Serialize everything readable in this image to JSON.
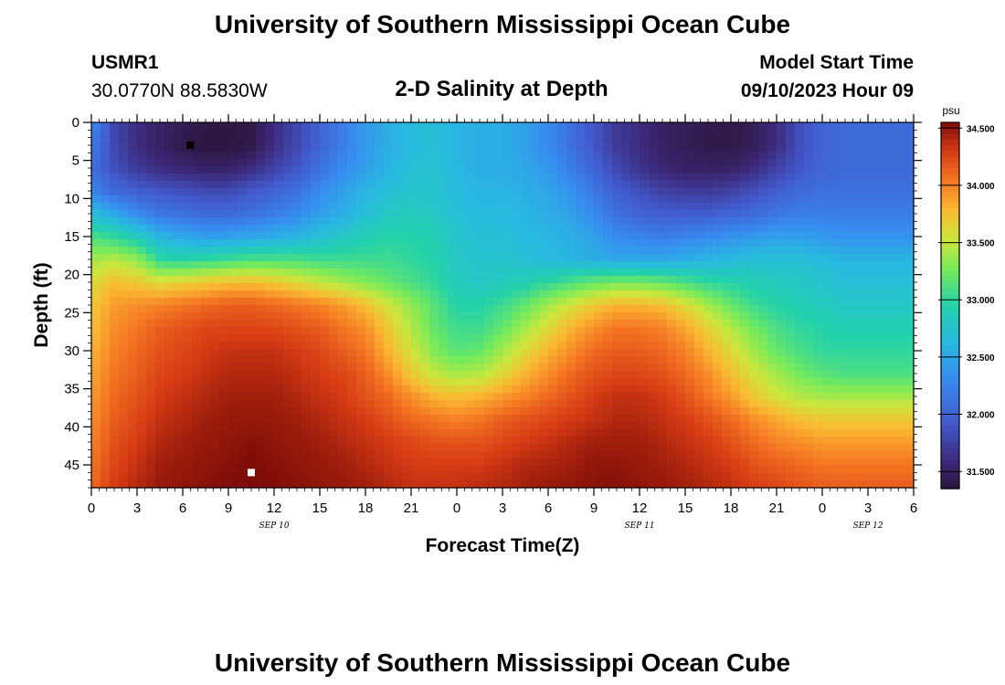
{
  "header": {
    "title": "University of Southern Mississippi Ocean Cube",
    "station": "USMR1",
    "coords": "30.0770N  88.5830W",
    "subtitle": "2-D Salinity at Depth",
    "model_label": "Model Start Time",
    "model_time": "09/10/2023 Hour 09"
  },
  "footer": {
    "title": "University of Southern Mississippi Ocean Cube"
  },
  "colorbar": {
    "unit": "psu",
    "tick_labels": [
      "34.500",
      "34.000",
      "33.500",
      "33.000",
      "32.500",
      "32.000",
      "31.500"
    ],
    "tick_values": [
      34.5,
      34.0,
      33.5,
      33.0,
      32.5,
      32.0,
      31.5
    ],
    "min": 31.35,
    "max": 34.55
  },
  "chart_data": {
    "type": "heatmap",
    "xlabel": "Forecast Time(Z)",
    "ylabel": "Depth (ft)",
    "x_unit": "hours from 00Z SEP 10",
    "xlim": [
      0,
      54
    ],
    "ylim": [
      0,
      48
    ],
    "y_inverted": true,
    "x_ticks": [
      0,
      3,
      6,
      9,
      12,
      15,
      18,
      21,
      24,
      27,
      30,
      33,
      36,
      39,
      42,
      45,
      48,
      51,
      54
    ],
    "x_tick_labels": [
      "0",
      "3",
      "6",
      "9",
      "12",
      "15",
      "18",
      "21",
      "0",
      "3",
      "6",
      "9",
      "12",
      "15",
      "18",
      "21",
      "0",
      "3",
      "6"
    ],
    "y_ticks": [
      0,
      5,
      10,
      15,
      20,
      25,
      30,
      35,
      40,
      45
    ],
    "y_tick_labels": [
      "0",
      "5",
      "10",
      "15",
      "20",
      "25",
      "30",
      "35",
      "40",
      "45"
    ],
    "day_labels": [
      {
        "text": "SEP 10",
        "hour": 12
      },
      {
        "text": "SEP 11",
        "hour": 36
      },
      {
        "text": "SEP 12",
        "hour": 51
      }
    ],
    "markers": [
      {
        "kind": "min",
        "color": "#000000",
        "hour": 6.5,
        "depth": 3
      },
      {
        "kind": "max",
        "color": "#ffffff",
        "hour": 10.5,
        "depth": 46
      }
    ],
    "grid_hours": [
      0,
      1.5,
      3,
      4.5,
      6,
      7.5,
      9,
      10.5,
      12,
      13.5,
      15,
      16.5,
      18,
      19.5,
      21,
      22.5,
      24,
      25.5,
      27,
      28.5,
      30,
      31.5,
      33,
      34.5,
      36,
      37.5,
      39,
      40.5,
      42,
      43.5,
      45,
      46.5,
      48,
      49.5,
      51,
      52.5,
      54
    ],
    "grid_depths": [
      0,
      3,
      6,
      9,
      12,
      15,
      18,
      21,
      24,
      27,
      30,
      33,
      36,
      39,
      42,
      45,
      48
    ],
    "salinity": [
      [
        32.3,
        31.8,
        31.6,
        31.5,
        31.45,
        31.4,
        31.38,
        31.4,
        31.6,
        31.8,
        32.0,
        32.2,
        32.4,
        32.55,
        32.65,
        32.7,
        32.6,
        32.55,
        32.55,
        32.45,
        32.3,
        32.1,
        31.9,
        31.7,
        31.6,
        31.5,
        31.45,
        31.42,
        31.4,
        31.45,
        31.6,
        31.85,
        32.0,
        32.05,
        32.05,
        32.05,
        32.05
      ],
      [
        32.2,
        31.8,
        31.6,
        31.5,
        31.4,
        31.36,
        31.36,
        31.4,
        31.62,
        31.8,
        32.0,
        32.2,
        32.4,
        32.55,
        32.65,
        32.7,
        32.6,
        32.55,
        32.55,
        32.45,
        32.3,
        32.1,
        31.9,
        31.7,
        31.6,
        31.5,
        31.45,
        31.4,
        31.4,
        31.45,
        31.6,
        31.85,
        32.0,
        32.05,
        32.05,
        32.05,
        32.05
      ],
      [
        32.1,
        31.85,
        31.7,
        31.6,
        31.55,
        31.5,
        31.5,
        31.6,
        31.75,
        31.9,
        32.1,
        32.3,
        32.45,
        32.6,
        32.7,
        32.72,
        32.62,
        32.55,
        32.55,
        32.5,
        32.4,
        32.2,
        32.0,
        31.8,
        31.65,
        31.55,
        31.5,
        31.5,
        31.5,
        31.6,
        31.75,
        31.9,
        32.0,
        32.05,
        32.05,
        32.05,
        32.05
      ],
      [
        32.25,
        32.05,
        31.95,
        31.9,
        31.85,
        31.8,
        31.8,
        31.9,
        32.0,
        32.1,
        32.3,
        32.45,
        32.6,
        32.7,
        32.75,
        32.75,
        32.65,
        32.6,
        32.6,
        32.55,
        32.5,
        32.35,
        32.15,
        31.95,
        31.85,
        31.75,
        31.7,
        31.7,
        31.75,
        31.85,
        31.95,
        32.05,
        32.1,
        32.1,
        32.1,
        32.1,
        32.1
      ],
      [
        32.7,
        32.5,
        32.3,
        32.15,
        32.1,
        32.05,
        32.05,
        32.1,
        32.2,
        32.3,
        32.45,
        32.55,
        32.7,
        32.8,
        32.85,
        32.8,
        32.7,
        32.65,
        32.65,
        32.6,
        32.55,
        32.45,
        32.3,
        32.1,
        32.0,
        31.95,
        31.95,
        31.95,
        32.0,
        32.05,
        32.15,
        32.2,
        32.2,
        32.2,
        32.2,
        32.2,
        32.2
      ],
      [
        33.1,
        33.0,
        32.85,
        32.6,
        32.5,
        32.45,
        32.45,
        32.5,
        32.55,
        32.6,
        32.7,
        32.8,
        32.9,
        32.95,
        32.95,
        32.9,
        32.75,
        32.7,
        32.7,
        32.65,
        32.6,
        32.55,
        32.45,
        32.3,
        32.25,
        32.2,
        32.25,
        32.3,
        32.35,
        32.4,
        32.45,
        32.45,
        32.4,
        32.35,
        32.35,
        32.35,
        32.35
      ],
      [
        33.4,
        33.45,
        33.35,
        33.0,
        32.95,
        33.0,
        33.05,
        33.1,
        33.1,
        33.1,
        33.05,
        33.05,
        33.05,
        33.05,
        33.0,
        32.95,
        32.8,
        32.75,
        32.75,
        32.7,
        32.65,
        32.6,
        32.55,
        32.5,
        32.5,
        32.5,
        32.55,
        32.6,
        32.65,
        32.7,
        32.7,
        32.7,
        32.65,
        32.6,
        32.6,
        32.6,
        32.6
      ],
      [
        33.6,
        33.75,
        33.7,
        33.6,
        33.65,
        33.7,
        33.75,
        33.75,
        33.7,
        33.6,
        33.5,
        33.4,
        33.3,
        33.2,
        33.1,
        33.0,
        32.85,
        32.8,
        32.85,
        32.9,
        33.0,
        33.1,
        33.2,
        33.25,
        33.25,
        33.2,
        33.1,
        33.0,
        32.95,
        32.9,
        32.85,
        32.8,
        32.75,
        32.7,
        32.7,
        32.7,
        32.7
      ],
      [
        33.7,
        33.9,
        33.95,
        34.0,
        34.05,
        34.1,
        34.15,
        34.15,
        34.1,
        34.05,
        34.0,
        33.9,
        33.75,
        33.55,
        33.35,
        33.15,
        32.95,
        32.95,
        33.05,
        33.2,
        33.4,
        33.55,
        33.7,
        33.8,
        33.8,
        33.75,
        33.6,
        33.4,
        33.2,
        33.05,
        32.95,
        32.9,
        32.85,
        32.8,
        32.8,
        32.8,
        32.8
      ],
      [
        33.75,
        33.95,
        34.05,
        34.15,
        34.2,
        34.25,
        34.25,
        34.25,
        34.25,
        34.2,
        34.15,
        34.05,
        33.95,
        33.7,
        33.45,
        33.2,
        33.05,
        33.05,
        33.2,
        33.4,
        33.6,
        33.8,
        33.95,
        34.05,
        34.05,
        34.0,
        33.85,
        33.65,
        33.45,
        33.25,
        33.1,
        33.0,
        32.95,
        32.9,
        32.9,
        32.9,
        32.9
      ],
      [
        33.8,
        34.0,
        34.1,
        34.2,
        34.25,
        34.3,
        34.35,
        34.35,
        34.35,
        34.3,
        34.25,
        34.15,
        34.05,
        33.8,
        33.55,
        33.3,
        33.15,
        33.2,
        33.4,
        33.6,
        33.8,
        33.95,
        34.1,
        34.15,
        34.15,
        34.1,
        34.0,
        33.8,
        33.6,
        33.4,
        33.2,
        33.1,
        33.0,
        33.0,
        33.0,
        33.0,
        33.0
      ],
      [
        33.85,
        34.05,
        34.15,
        34.25,
        34.3,
        34.35,
        34.4,
        34.4,
        34.4,
        34.35,
        34.3,
        34.25,
        34.15,
        33.95,
        33.7,
        33.5,
        33.4,
        33.45,
        33.6,
        33.8,
        33.95,
        34.1,
        34.2,
        34.25,
        34.25,
        34.2,
        34.1,
        33.95,
        33.75,
        33.55,
        33.4,
        33.25,
        33.15,
        33.1,
        33.1,
        33.1,
        33.1
      ],
      [
        33.9,
        34.1,
        34.2,
        34.3,
        34.35,
        34.4,
        34.45,
        34.45,
        34.45,
        34.4,
        34.35,
        34.3,
        34.2,
        34.1,
        33.95,
        33.8,
        33.75,
        33.8,
        33.9,
        34.0,
        34.1,
        34.2,
        34.3,
        34.35,
        34.35,
        34.3,
        34.2,
        34.05,
        33.9,
        33.7,
        33.55,
        33.45,
        33.4,
        33.4,
        33.4,
        33.4,
        33.4
      ],
      [
        33.95,
        34.15,
        34.25,
        34.35,
        34.4,
        34.45,
        34.48,
        34.48,
        34.48,
        34.45,
        34.4,
        34.35,
        34.3,
        34.2,
        34.1,
        34.05,
        34.0,
        34.05,
        34.15,
        34.2,
        34.25,
        34.3,
        34.35,
        34.4,
        34.4,
        34.35,
        34.3,
        34.2,
        34.1,
        33.95,
        33.85,
        33.75,
        33.7,
        33.7,
        33.7,
        33.7,
        33.7
      ],
      [
        34.0,
        34.2,
        34.3,
        34.4,
        34.45,
        34.48,
        34.5,
        34.52,
        34.5,
        34.48,
        34.45,
        34.4,
        34.35,
        34.3,
        34.25,
        34.2,
        34.2,
        34.2,
        34.25,
        34.3,
        34.35,
        34.4,
        34.45,
        34.45,
        34.45,
        34.4,
        34.35,
        34.3,
        34.2,
        34.1,
        34.0,
        33.95,
        33.9,
        33.9,
        33.9,
        33.9,
        33.9
      ],
      [
        34.05,
        34.25,
        34.35,
        34.45,
        34.48,
        34.5,
        34.52,
        34.55,
        34.52,
        34.5,
        34.48,
        34.45,
        34.4,
        34.35,
        34.3,
        34.3,
        34.3,
        34.3,
        34.35,
        34.4,
        34.42,
        34.45,
        34.5,
        34.5,
        34.48,
        34.45,
        34.4,
        34.35,
        34.3,
        34.2,
        34.15,
        34.1,
        34.05,
        34.05,
        34.05,
        34.05,
        34.05
      ],
      [
        34.1,
        34.3,
        34.4,
        34.48,
        34.5,
        34.52,
        34.55,
        34.55,
        34.55,
        34.52,
        34.5,
        34.48,
        34.45,
        34.4,
        34.35,
        34.35,
        34.35,
        34.38,
        34.4,
        34.45,
        34.48,
        34.5,
        34.52,
        34.52,
        34.5,
        34.48,
        34.45,
        34.4,
        34.35,
        34.3,
        34.25,
        34.2,
        34.15,
        34.15,
        34.15,
        34.15,
        34.15
      ]
    ]
  }
}
